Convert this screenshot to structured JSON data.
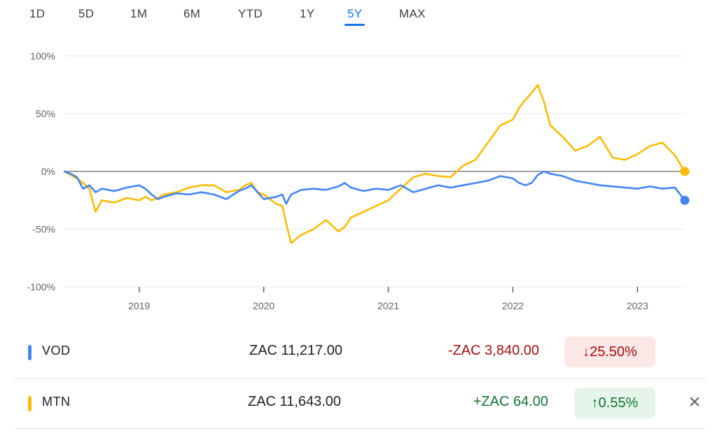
{
  "tabs": [
    {
      "label": "1D",
      "active": false
    },
    {
      "label": "5D",
      "active": false
    },
    {
      "label": "1M",
      "active": false
    },
    {
      "label": "6M",
      "active": false
    },
    {
      "label": "YTD",
      "active": false
    },
    {
      "label": "1Y",
      "active": false
    },
    {
      "label": "5Y",
      "active": true
    },
    {
      "label": "MAX",
      "active": false
    }
  ],
  "colors": {
    "vod": "#4285f4",
    "mtn": "#fbbc04",
    "negative_text": "#a50e0e",
    "negative_bg": "#fce8e6",
    "positive_text": "#137333",
    "positive_bg": "#e6f4ea"
  },
  "rows": [
    {
      "symbol": "VOD",
      "price": "ZAC 11,217.00",
      "change": "-ZAC 3,840.00",
      "pct": "↓25.50%",
      "direction": "down",
      "color": "#4285f4"
    },
    {
      "symbol": "MTN",
      "price": "ZAC 11,643.00",
      "change": "+ZAC 64.00",
      "pct": "↑0.55%",
      "direction": "up",
      "color": "#fbbc04",
      "closable": true
    }
  ],
  "close_icon": "×",
  "chart_data": {
    "type": "line",
    "y_ticks": [
      "100%",
      "50%",
      "0%",
      "-50%",
      "-100%"
    ],
    "x_ticks": [
      "2019",
      "2020",
      "2021",
      "2022",
      "2023"
    ],
    "ylim": [
      -100,
      100
    ],
    "y_unit": "%",
    "baseline": 0,
    "x_range": [
      2018.4,
      2023.38
    ],
    "x_tick_values": [
      2019.0,
      2020.0,
      2021.0,
      2022.0,
      2023.0
    ],
    "series": [
      {
        "name": "VOD",
        "color": "#4285f4",
        "x": [
          2018.4,
          2018.45,
          2018.5,
          2018.55,
          2018.6,
          2018.65,
          2018.7,
          2018.8,
          2018.9,
          2019.0,
          2019.05,
          2019.1,
          2019.15,
          2019.2,
          2019.3,
          2019.4,
          2019.5,
          2019.6,
          2019.7,
          2019.8,
          2019.85,
          2019.9,
          2019.95,
          2020.0,
          2020.1,
          2020.15,
          2020.18,
          2020.22,
          2020.3,
          2020.4,
          2020.5,
          2020.6,
          2020.65,
          2020.7,
          2020.8,
          2020.9,
          2021.0,
          2021.1,
          2021.2,
          2021.3,
          2021.4,
          2021.5,
          2021.6,
          2021.7,
          2021.8,
          2021.9,
          2022.0,
          2022.05,
          2022.1,
          2022.15,
          2022.2,
          2022.25,
          2022.3,
          2022.4,
          2022.5,
          2022.6,
          2022.7,
          2022.8,
          2022.9,
          2023.0,
          2023.1,
          2023.2,
          2023.3,
          2023.38
        ],
        "y": [
          0,
          -2,
          -5,
          -15,
          -12,
          -18,
          -15,
          -17,
          -14,
          -12,
          -15,
          -20,
          -24,
          -22,
          -19,
          -20,
          -18,
          -20,
          -24,
          -17,
          -15,
          -12,
          -18,
          -24,
          -22,
          -20,
          -28,
          -20,
          -16,
          -15,
          -16,
          -13,
          -10,
          -14,
          -17,
          -15,
          -16,
          -12,
          -18,
          -15,
          -12,
          -14,
          -12,
          -10,
          -8,
          -4,
          -6,
          -10,
          -12,
          -10,
          -3,
          0,
          -2,
          -4,
          -8,
          -10,
          -12,
          -13,
          -14,
          -15,
          -13,
          -15,
          -14,
          -25
        ]
      },
      {
        "name": "MTN",
        "color": "#fbbc04",
        "x": [
          2018.4,
          2018.45,
          2018.5,
          2018.55,
          2018.6,
          2018.65,
          2018.7,
          2018.8,
          2018.9,
          2019.0,
          2019.05,
          2019.1,
          2019.15,
          2019.2,
          2019.3,
          2019.4,
          2019.5,
          2019.6,
          2019.7,
          2019.8,
          2019.85,
          2019.9,
          2019.95,
          2020.0,
          2020.1,
          2020.15,
          2020.18,
          2020.22,
          2020.3,
          2020.4,
          2020.5,
          2020.6,
          2020.65,
          2020.7,
          2020.8,
          2020.9,
          2021.0,
          2021.1,
          2021.2,
          2021.3,
          2021.4,
          2021.5,
          2021.6,
          2021.7,
          2021.8,
          2021.9,
          2022.0,
          2022.05,
          2022.1,
          2022.15,
          2022.2,
          2022.25,
          2022.3,
          2022.4,
          2022.5,
          2022.6,
          2022.7,
          2022.8,
          2022.9,
          2023.0,
          2023.1,
          2023.2,
          2023.3,
          2023.38
        ],
        "y": [
          0,
          -3,
          -6,
          -10,
          -15,
          -35,
          -25,
          -27,
          -23,
          -25,
          -22,
          -25,
          -23,
          -20,
          -18,
          -14,
          -12,
          -12,
          -18,
          -16,
          -12,
          -10,
          -18,
          -20,
          -28,
          -30,
          -45,
          -62,
          -55,
          -50,
          -42,
          -52,
          -48,
          -40,
          -35,
          -30,
          -25,
          -15,
          -5,
          -2,
          -4,
          -5,
          5,
          10,
          25,
          40,
          45,
          55,
          62,
          68,
          75,
          60,
          40,
          30,
          18,
          22,
          30,
          12,
          10,
          15,
          22,
          25,
          14,
          0
        ]
      }
    ]
  }
}
